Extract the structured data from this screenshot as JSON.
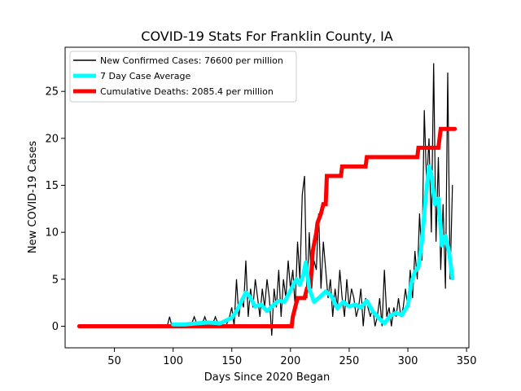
{
  "chart_data": {
    "type": "line",
    "title": "COVID-19 Stats For Franklin County, IA",
    "xlabel": "Days Since 2020 Began",
    "ylabel": "New COVID-19 Cases",
    "xlim": [
      8,
      352
    ],
    "ylim": [
      -2.3,
      29.7
    ],
    "xticks": [
      50,
      100,
      150,
      200,
      250,
      300,
      350
    ],
    "yticks": [
      0,
      5,
      10,
      15,
      20,
      25
    ],
    "grid": false,
    "legend_position": "top-left",
    "series": [
      {
        "name": "New Confirmed Cases: 76600 per million",
        "color": "#000000",
        "x": [
          20,
          40,
          60,
          80,
          95,
          97,
          99,
          101,
          110,
          115,
          118,
          121,
          124,
          127,
          130,
          133,
          136,
          139,
          142,
          145,
          148,
          150,
          152,
          154,
          156,
          158,
          160,
          162,
          164,
          166,
          168,
          170,
          172,
          174,
          176,
          178,
          180,
          182,
          184,
          186,
          188,
          190,
          192,
          194,
          196,
          198,
          200,
          202,
          204,
          206,
          208,
          210,
          212,
          214,
          216,
          218,
          220,
          222,
          224,
          226,
          228,
          230,
          232,
          234,
          236,
          238,
          240,
          242,
          244,
          246,
          248,
          250,
          252,
          254,
          256,
          258,
          260,
          262,
          264,
          266,
          268,
          270,
          272,
          274,
          276,
          278,
          280,
          282,
          284,
          286,
          288,
          290,
          292,
          294,
          296,
          298,
          300,
          302,
          304,
          306,
          308,
          310,
          312,
          314,
          316,
          318,
          320,
          322,
          324,
          326,
          328,
          330,
          332,
          334,
          336,
          338
        ],
        "y": [
          0,
          0,
          0,
          0,
          0,
          1,
          0,
          0,
          0,
          0,
          1,
          0,
          0,
          1,
          0,
          0,
          1,
          0,
          0,
          0,
          1,
          2,
          0,
          5,
          1,
          3,
          2,
          7,
          1,
          4,
          2,
          5,
          3,
          1,
          4,
          2,
          5,
          3,
          -1,
          4,
          2,
          6,
          1,
          5,
          3,
          7,
          4,
          6,
          2,
          9,
          5,
          14,
          16,
          3,
          10,
          4,
          7,
          6,
          12,
          4,
          9,
          6,
          3,
          5,
          1,
          4,
          2,
          6,
          3,
          1,
          5,
          2,
          4,
          3,
          1,
          2,
          4,
          0,
          3,
          2,
          1,
          2,
          0,
          1,
          3,
          0,
          6,
          1,
          2,
          0,
          2,
          1,
          3,
          1,
          2,
          4,
          2,
          6,
          3,
          8,
          5,
          12,
          7,
          23,
          15,
          20,
          10,
          28,
          9,
          18,
          6,
          13,
          4,
          27,
          5,
          15
        ],
        "values_per_million": 76600
      },
      {
        "name": "7 Day Case Average",
        "color": "#00ffff",
        "x": [
          100,
          110,
          120,
          130,
          140,
          145,
          150,
          155,
          158,
          162,
          165,
          170,
          175,
          180,
          185,
          190,
          195,
          200,
          205,
          208,
          211,
          213,
          216,
          220,
          225,
          230,
          235,
          240,
          245,
          250,
          255,
          260,
          265,
          270,
          275,
          280,
          285,
          290,
          295,
          300,
          303,
          306,
          309,
          312,
          315,
          318,
          320,
          323,
          326,
          329,
          332,
          335,
          338
        ],
        "y": [
          0.2,
          0.2,
          0.3,
          0.4,
          0.3,
          0.6,
          0.9,
          1.8,
          2.6,
          3.6,
          3.2,
          2.1,
          2.3,
          1.6,
          2.2,
          2.7,
          2.6,
          3.8,
          5.0,
          4.4,
          5.5,
          6.8,
          4.0,
          2.6,
          3.1,
          3.7,
          3.2,
          1.9,
          2.6,
          2.1,
          2.3,
          2.0,
          2.7,
          1.6,
          0.9,
          0.3,
          1.1,
          1.4,
          1.2,
          2.2,
          4.6,
          5.8,
          6.3,
          9.0,
          13.5,
          17.0,
          16.2,
          13.0,
          13.6,
          8.6,
          9.6,
          8.0,
          5.1
        ]
      },
      {
        "name": "Cumulative Deaths: 2085.4 per million",
        "color": "#ff0000",
        "x": [
          20,
          201,
          202,
          204,
          206,
          208,
          210,
          212,
          214,
          216,
          218,
          219,
          222,
          223,
          226,
          228,
          230,
          231,
          234,
          243,
          244,
          264,
          265,
          308,
          309,
          325,
          326,
          328,
          340
        ],
        "y": [
          0,
          0,
          1,
          2,
          3,
          3,
          3,
          3,
          4,
          4,
          6,
          8,
          10,
          11,
          12,
          13,
          13,
          16,
          16,
          16,
          17,
          17,
          18,
          18,
          19,
          19,
          19,
          21,
          21
        ]
      }
    ]
  }
}
